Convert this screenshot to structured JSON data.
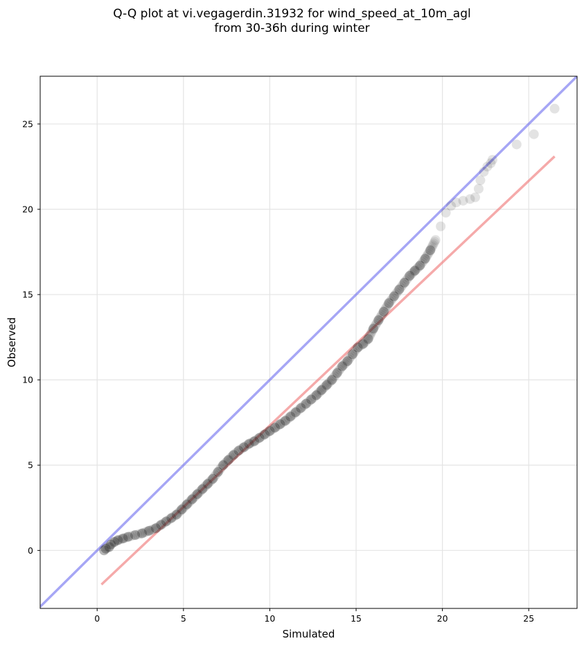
{
  "chart_data": {
    "type": "scatter",
    "title": [
      "Q-Q plot at vi.vegagerdin.31932 for wind_speed_at_10m_agl",
      "from 30-36h during winter"
    ],
    "xlabel": "Simulated",
    "ylabel": "Observed",
    "xlim": [
      -3.3,
      27.8
    ],
    "ylim": [
      -3.4,
      27.8
    ],
    "xticks": [
      0,
      5,
      10,
      15,
      20,
      25
    ],
    "yticks": [
      0,
      5,
      10,
      15,
      20,
      25
    ],
    "grid": true,
    "colors": {
      "points": "#1a1a1a",
      "identity_line": "#6a6aee",
      "fit_line": "#f07c7c",
      "fit_line_overlap": "#8a0e0e"
    },
    "identity_line": {
      "from": [
        -3.3,
        -3.3
      ],
      "to": [
        27.8,
        27.8
      ]
    },
    "fit_line": {
      "from": [
        0.25,
        -2.0
      ],
      "to": [
        26.5,
        23.1
      ]
    },
    "points": [
      [
        0.4,
        0.0
      ],
      [
        0.5,
        0.1
      ],
      [
        0.7,
        0.2
      ],
      [
        0.8,
        0.35
      ],
      [
        1.0,
        0.5
      ],
      [
        1.2,
        0.6
      ],
      [
        1.5,
        0.7
      ],
      [
        1.8,
        0.8
      ],
      [
        2.2,
        0.9
      ],
      [
        2.6,
        1.0
      ],
      [
        3.0,
        1.15
      ],
      [
        3.4,
        1.3
      ],
      [
        3.7,
        1.5
      ],
      [
        4.0,
        1.7
      ],
      [
        4.3,
        1.9
      ],
      [
        4.6,
        2.1
      ],
      [
        4.9,
        2.4
      ],
      [
        5.2,
        2.7
      ],
      [
        5.5,
        3.0
      ],
      [
        5.8,
        3.3
      ],
      [
        6.1,
        3.6
      ],
      [
        6.4,
        3.9
      ],
      [
        6.7,
        4.2
      ],
      [
        7.0,
        4.6
      ],
      [
        7.3,
        5.0
      ],
      [
        7.6,
        5.3
      ],
      [
        7.9,
        5.6
      ],
      [
        8.2,
        5.85
      ],
      [
        8.5,
        6.05
      ],
      [
        8.8,
        6.25
      ],
      [
        9.1,
        6.4
      ],
      [
        9.4,
        6.6
      ],
      [
        9.7,
        6.8
      ],
      [
        10.0,
        7.0
      ],
      [
        10.3,
        7.2
      ],
      [
        10.6,
        7.4
      ],
      [
        10.9,
        7.6
      ],
      [
        11.2,
        7.85
      ],
      [
        11.5,
        8.1
      ],
      [
        11.8,
        8.35
      ],
      [
        12.1,
        8.6
      ],
      [
        12.4,
        8.85
      ],
      [
        12.7,
        9.1
      ],
      [
        13.0,
        9.4
      ],
      [
        13.3,
        9.7
      ],
      [
        13.6,
        10.0
      ],
      [
        13.9,
        10.4
      ],
      [
        14.2,
        10.8
      ],
      [
        14.5,
        11.1
      ],
      [
        14.8,
        11.5
      ],
      [
        15.1,
        11.9
      ],
      [
        15.4,
        12.1
      ],
      [
        15.7,
        12.4
      ],
      [
        16.0,
        13.0
      ],
      [
        16.3,
        13.5
      ],
      [
        16.6,
        14.0
      ],
      [
        16.9,
        14.5
      ],
      [
        17.2,
        14.9
      ],
      [
        17.5,
        15.3
      ],
      [
        17.8,
        15.7
      ],
      [
        18.1,
        16.1
      ],
      [
        18.4,
        16.4
      ],
      [
        18.7,
        16.7
      ],
      [
        19.0,
        17.1
      ],
      [
        19.3,
        17.6
      ],
      [
        19.6,
        18.2
      ],
      [
        19.9,
        19.0
      ],
      [
        20.2,
        19.8
      ],
      [
        20.5,
        20.2
      ],
      [
        20.8,
        20.4
      ],
      [
        21.2,
        20.5
      ],
      [
        21.6,
        20.6
      ],
      [
        21.9,
        20.7
      ],
      [
        22.1,
        21.2
      ],
      [
        22.2,
        21.7
      ],
      [
        22.4,
        22.2
      ],
      [
        22.6,
        22.5
      ],
      [
        22.8,
        22.7
      ],
      [
        22.9,
        22.9
      ],
      [
        24.3,
        23.8
      ],
      [
        25.3,
        24.4
      ],
      [
        26.5,
        25.9
      ]
    ]
  }
}
